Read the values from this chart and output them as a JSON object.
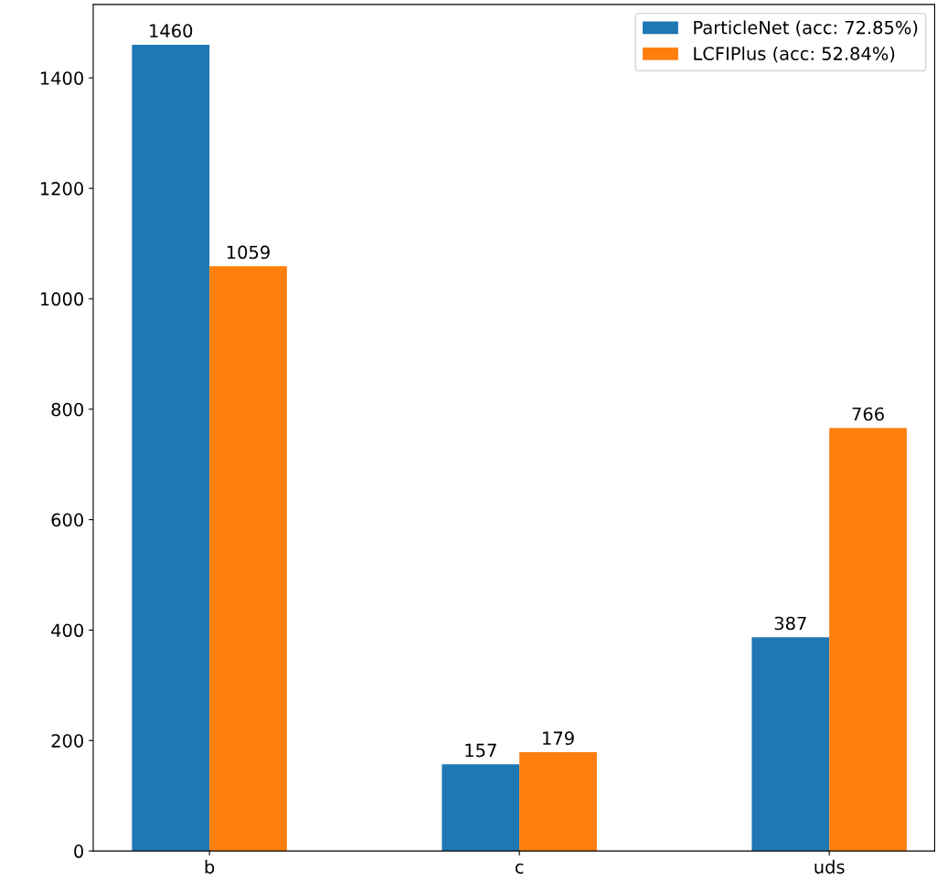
{
  "chart_data": {
    "type": "bar",
    "categories": [
      "b",
      "c",
      "uds"
    ],
    "series": [
      {
        "name": "ParticleNet (acc: 72.85%)",
        "color": "#1f77b4",
        "values": [
          1460,
          157,
          387
        ]
      },
      {
        "name": "LCFIPlus (acc: 52.84%)",
        "color": "#ff7f0e",
        "values": [
          1059,
          179,
          766
        ]
      }
    ],
    "ylim": [
      0,
      1533
    ],
    "yticks": [
      0,
      200,
      400,
      600,
      800,
      1000,
      1200,
      1400
    ],
    "data_labels": true,
    "legend": "top right",
    "grid": false
  }
}
